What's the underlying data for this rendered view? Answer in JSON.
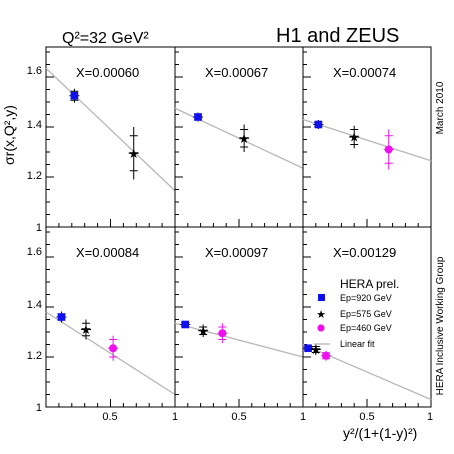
{
  "header": {
    "q2_label": "Q²=32 GeV²",
    "collab_title": "H1 and ZEUS",
    "date_label": "March 2010",
    "group_label": "HERA Inclusive Working Group"
  },
  "axis": {
    "ylabel": "σr(x,Q²,y)",
    "xlabel": "y²/(1+(1-y)²)",
    "xticks": [
      "0.5",
      "1"
    ],
    "yticks": [
      "1",
      "1.2",
      "1.4",
      "1.6"
    ]
  },
  "legend": {
    "title": "HERA prel.",
    "items": [
      {
        "label": "Ep=920 GeV",
        "marker": "square",
        "color": "#1010ee"
      },
      {
        "label": "Ep=575 GeV",
        "marker": "star",
        "color": "#000000"
      },
      {
        "label": "Ep=460 GeV",
        "marker": "circle",
        "color": "#ee10ee"
      },
      {
        "label": "Linear fit",
        "marker": "line",
        "color": "#b8b8b8"
      }
    ]
  },
  "chart_data": {
    "type": "scatter",
    "xlim": [
      0,
      1
    ],
    "ylim": [
      1.0,
      1.72
    ],
    "grid": false,
    "panels": [
      {
        "label": "X=0.00060",
        "fit": [
          [
            0,
            1.635
          ],
          [
            1,
            1.145
          ]
        ],
        "points": [
          {
            "series": "Ep=920 GeV",
            "x": 0.22,
            "y": 1.525,
            "err_stat": 0.018,
            "err_tot": 0.028
          },
          {
            "series": "Ep=575 GeV",
            "x": 0.68,
            "y": 1.295,
            "err_stat": 0.07,
            "err_tot": 0.105
          }
        ]
      },
      {
        "label": "X=0.00067",
        "fit": [
          [
            0,
            1.475
          ],
          [
            1,
            1.235
          ]
        ],
        "points": [
          {
            "series": "Ep=920 GeV",
            "x": 0.18,
            "y": 1.44,
            "err_stat": 0.012,
            "err_tot": 0.018
          },
          {
            "series": "Ep=575 GeV",
            "x": 0.54,
            "y": 1.355,
            "err_stat": 0.035,
            "err_tot": 0.055
          }
        ]
      },
      {
        "label": "X=0.00074",
        "fit": [
          [
            0,
            1.43
          ],
          [
            1,
            1.265
          ]
        ],
        "points": [
          {
            "series": "Ep=920 GeV",
            "x": 0.12,
            "y": 1.41,
            "err_stat": 0.01,
            "err_tot": 0.018
          },
          {
            "series": "Ep=575 GeV",
            "x": 0.4,
            "y": 1.36,
            "err_stat": 0.03,
            "err_tot": 0.045
          },
          {
            "series": "Ep=460 GeV",
            "x": 0.67,
            "y": 1.31,
            "err_stat": 0.055,
            "err_tot": 0.08
          }
        ]
      },
      {
        "label": "X=0.00084",
        "fit": [
          [
            0,
            1.38
          ],
          [
            1,
            1.05
          ]
        ],
        "points": [
          {
            "series": "Ep=920 GeV",
            "x": 0.12,
            "y": 1.36,
            "err_stat": 0.012,
            "err_tot": 0.022
          },
          {
            "series": "Ep=575 GeV",
            "x": 0.31,
            "y": 1.31,
            "err_stat": 0.025,
            "err_tot": 0.04
          },
          {
            "series": "Ep=460 GeV",
            "x": 0.52,
            "y": 1.235,
            "err_stat": 0.035,
            "err_tot": 0.05
          }
        ]
      },
      {
        "label": "X=0.00097",
        "fit": [
          [
            0,
            1.335
          ],
          [
            1,
            1.2
          ]
        ],
        "points": [
          {
            "series": "Ep=920 GeV",
            "x": 0.08,
            "y": 1.33,
            "err_stat": 0.008,
            "err_tot": 0.012
          },
          {
            "series": "Ep=575 GeV",
            "x": 0.22,
            "y": 1.305,
            "err_stat": 0.015,
            "err_tot": 0.025
          },
          {
            "series": "Ep=460 GeV",
            "x": 0.37,
            "y": 1.295,
            "err_stat": 0.025,
            "err_tot": 0.04
          }
        ]
      },
      {
        "label": "X=0.00129",
        "fit": [
          [
            0,
            1.25
          ],
          [
            1,
            1.03
          ]
        ],
        "points": [
          {
            "series": "Ep=920 GeV",
            "x": 0.04,
            "y": 1.235,
            "err_stat": 0.006,
            "err_tot": 0.01
          },
          {
            "series": "Ep=575 GeV",
            "x": 0.1,
            "y": 1.23,
            "err_stat": 0.012,
            "err_tot": 0.022
          },
          {
            "series": "Ep=460 GeV",
            "x": 0.18,
            "y": 1.205,
            "err_stat": 0.012,
            "err_tot": 0.02
          }
        ]
      }
    ]
  }
}
